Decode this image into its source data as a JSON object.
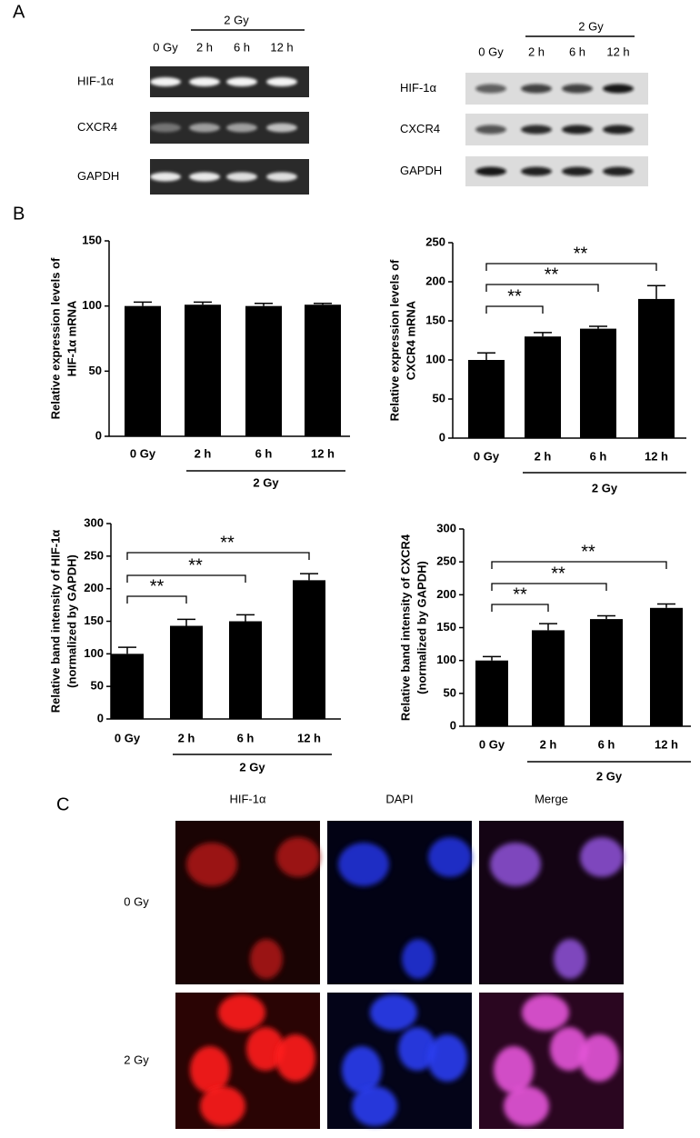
{
  "panels": {
    "a": "A",
    "b": "B",
    "c": "C"
  },
  "blots": [
    {
      "lanes": [
        "0 Gy",
        "2 h",
        "6 h",
        "12 h"
      ],
      "group": "2 Gy",
      "rows": [
        "HIF-1α",
        "CXCR4",
        "GAPDH"
      ]
    },
    {
      "lanes": [
        "0 Gy",
        "2 h",
        "6 h",
        "12 h"
      ],
      "group": "2 Gy",
      "rows": [
        "HIF-1α",
        "CXCR4",
        "GAPDH"
      ]
    }
  ],
  "chart_data": [
    {
      "type": "bar",
      "ylabel": [
        "Relative expression levels of",
        "HIF-1α mRNA"
      ],
      "categories": [
        "0 Gy",
        "2 h",
        "6 h",
        "12 h"
      ],
      "group": "2 Gy",
      "values": [
        100,
        101,
        100,
        101
      ],
      "errors": [
        3,
        2,
        2,
        1
      ],
      "color": "#000000",
      "ylim": [
        0,
        150
      ],
      "yticks": [
        0,
        50,
        100,
        150
      ],
      "brackets": []
    },
    {
      "type": "bar",
      "ylabel": [
        "Relative expression levels of",
        "CXCR4 mRNA"
      ],
      "categories": [
        "0 Gy",
        "2 h",
        "6 h",
        "12 h"
      ],
      "group": "2 Gy",
      "values": [
        100,
        130,
        140,
        178
      ],
      "errors": [
        9,
        5,
        3,
        17
      ],
      "color": "#000000",
      "ylim": [
        0,
        250
      ],
      "yticks": [
        0,
        50,
        100,
        150,
        200,
        250
      ],
      "brackets": [
        "**",
        "**",
        "**"
      ]
    },
    {
      "type": "bar",
      "ylabel": [
        "Relative band intensity of HIF-1α",
        "(normalized by GAPDH)"
      ],
      "categories": [
        "0 Gy",
        "2 h",
        "6 h",
        "12 h"
      ],
      "group": "2 Gy",
      "values": [
        100,
        143,
        150,
        213
      ],
      "errors": [
        10,
        10,
        10,
        10
      ],
      "color": "#000000",
      "ylim": [
        0,
        300
      ],
      "yticks": [
        0,
        50,
        100,
        150,
        200,
        250,
        300
      ],
      "brackets": [
        "**",
        "**",
        "**"
      ]
    },
    {
      "type": "bar",
      "ylabel": [
        "Relative band intensity of CXCR4",
        "(normalized by GAPDH)"
      ],
      "categories": [
        "0 Gy",
        "2 h",
        "6 h",
        "12 h"
      ],
      "group": "2 Gy",
      "values": [
        100,
        146,
        163,
        180
      ],
      "errors": [
        6,
        10,
        5,
        6
      ],
      "color": "#000000",
      "ylim": [
        0,
        300
      ],
      "yticks": [
        0,
        50,
        100,
        150,
        200,
        250,
        300
      ],
      "brackets": [
        "**",
        "**",
        "**"
      ]
    }
  ],
  "microscopy": {
    "columns": [
      "HIF-1α",
      "DAPI",
      "Merge"
    ],
    "rows": [
      "0 Gy",
      "2 Gy"
    ]
  }
}
